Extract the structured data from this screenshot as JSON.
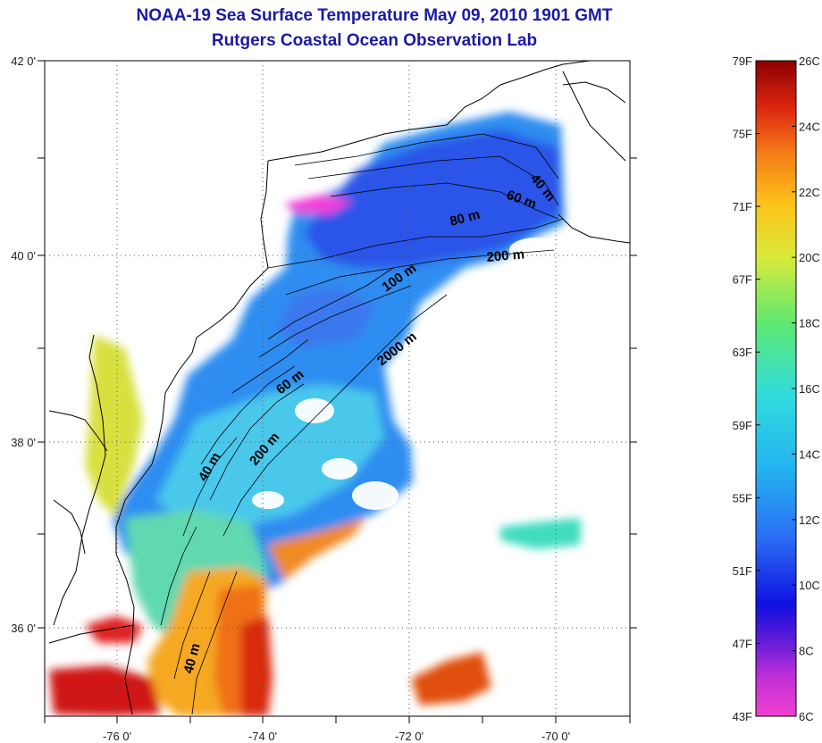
{
  "title": {
    "line1": "NOAA-19 Sea Surface Temperature May 09, 2010 1901 GMT",
    "line2": "Rutgers Coastal Ocean Observation Lab"
  },
  "map": {
    "lon_ticks": [
      "-76 0'",
      "-74 0'",
      "-72 0'",
      "-70 0'"
    ],
    "lat_ticks": [
      "42 0'",
      "40 0'",
      "38 0'",
      "36 0'"
    ],
    "contour_labels": [
      "40 m",
      "60 m",
      "80 m",
      "200 m",
      "100 m",
      "2000 m",
      "60 m",
      "200 m",
      "40 m",
      "40 m"
    ]
  },
  "colorbar": {
    "fahrenheit": [
      "79F",
      "75F",
      "71F",
      "67F",
      "63F",
      "59F",
      "55F",
      "51F",
      "47F",
      "43F"
    ],
    "celsius": [
      "26C",
      "24C",
      "22C",
      "20C",
      "18C",
      "16C",
      "14C",
      "12C",
      "10C",
      "8C",
      "6C"
    ],
    "colors": [
      "#f040d0",
      "#7b1fd6",
      "#1b1bd6",
      "#2f6ff0",
      "#28b8ee",
      "#36e0d8",
      "#60e070",
      "#d8e838",
      "#fcc018",
      "#f07018",
      "#d81e0e",
      "#8a0000"
    ]
  }
}
